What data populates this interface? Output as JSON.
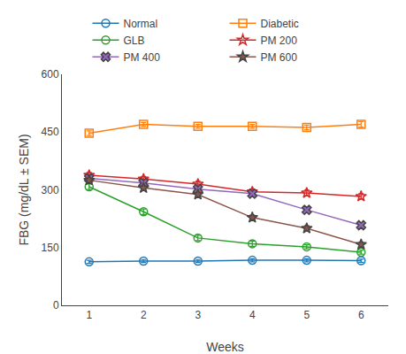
{
  "chart_data": {
    "type": "line",
    "xlabel": "Weeks",
    "ylabel": "FBG (mg/dL ± SEM)",
    "x": [
      1,
      2,
      3,
      4,
      5,
      6
    ],
    "xlim": [
      0.5,
      6.5
    ],
    "xticks": [
      1,
      2,
      3,
      4,
      5,
      6
    ],
    "ylim": [
      0,
      600
    ],
    "yticks": [
      0,
      150,
      300,
      450,
      600
    ],
    "grid": false,
    "legend": "top",
    "series": [
      {
        "name": "Normal",
        "marker": "circle-open",
        "values": [
          113,
          115,
          115,
          117,
          117,
          116
        ],
        "errors": [
          4,
          4,
          4,
          4,
          4,
          4
        ]
      },
      {
        "name": "Diabetic",
        "marker": "square-open",
        "values": [
          447,
          470,
          465,
          465,
          462,
          470
        ],
        "errors": [
          6,
          5,
          5,
          5,
          6,
          7
        ]
      },
      {
        "name": "GLB",
        "marker": "circle-open",
        "values": [
          308,
          243,
          175,
          160,
          152,
          138
        ],
        "errors": [
          7,
          7,
          7,
          7,
          5,
          5
        ]
      },
      {
        "name": "PM 200",
        "marker": "star-open",
        "values": [
          338,
          328,
          315,
          295,
          292,
          283
        ],
        "errors": [
          7,
          7,
          7,
          7,
          7,
          7
        ]
      },
      {
        "name": "PM 400",
        "marker": "x",
        "values": [
          330,
          318,
          302,
          290,
          248,
          208
        ],
        "errors": [
          7,
          7,
          7,
          7,
          7,
          7
        ]
      },
      {
        "name": "PM 600",
        "marker": "star",
        "values": [
          325,
          305,
          288,
          228,
          200,
          158
        ],
        "errors": [
          7,
          7,
          7,
          7,
          7,
          7
        ]
      }
    ]
  }
}
